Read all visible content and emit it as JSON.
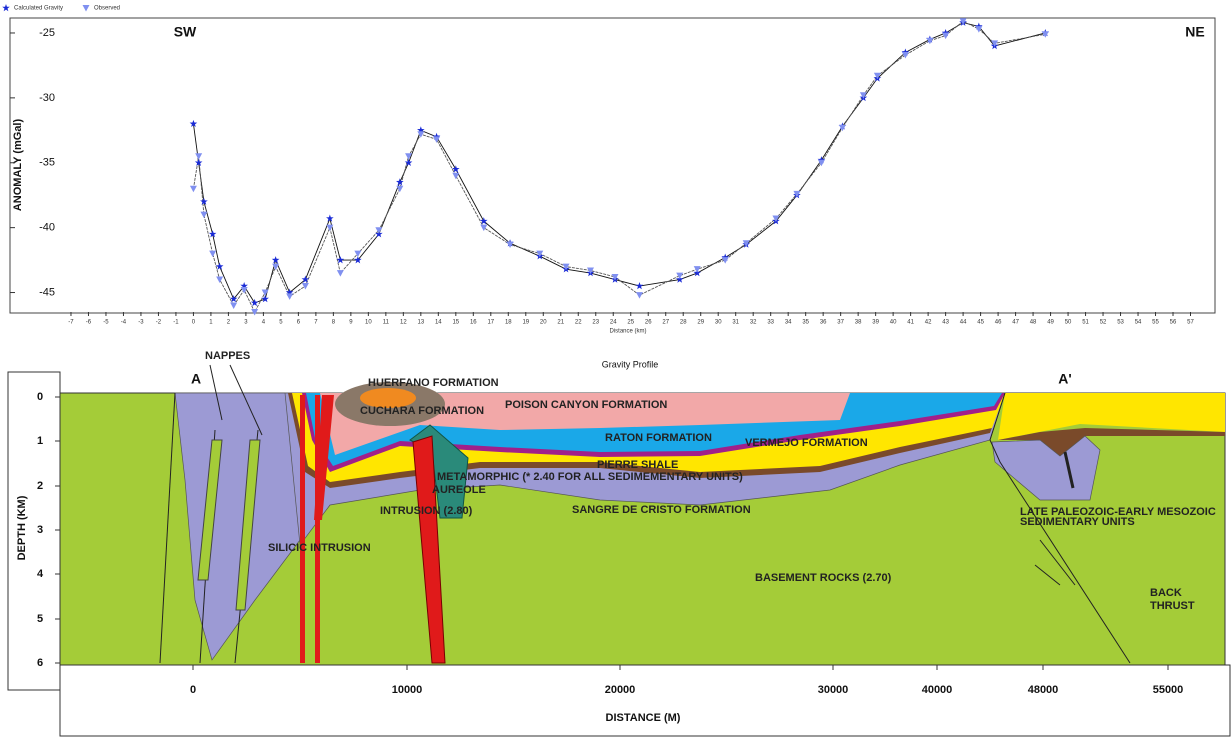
{
  "chart_data": {
    "type": "line",
    "title": "Gravity Profile",
    "x_label": "Distance (km)",
    "y_label": "ANOMALY (mGal)",
    "annotations": [
      "SW",
      "NE"
    ],
    "x": [
      0,
      0.3,
      0.6,
      1.1,
      1.5,
      2.3,
      2.9,
      3.5,
      4.1,
      4.7,
      5.5,
      6.4,
      7.8,
      8.4,
      9.4,
      10.6,
      11.8,
      12.3,
      13,
      13.9,
      15,
      16.6,
      18.1,
      19.8,
      21.3,
      22.7,
      24.1,
      25.5,
      27.8,
      28.8,
      30.4,
      31.6,
      33.3,
      34.5,
      35.9,
      37.1,
      38.3,
      39.1,
      40.7,
      42.1,
      43,
      44,
      44.9,
      45.8,
      48.7
    ],
    "series": [
      {
        "name": "Calculated Gravity",
        "color": "#1a2bd6",
        "marker": "star",
        "values": [
          -32,
          -35,
          -38,
          -40.5,
          -43,
          -45.5,
          -44.5,
          -45.8,
          -45.5,
          -42.5,
          -45,
          -44,
          -39.3,
          -42.5,
          -42.5,
          -40.5,
          -36.5,
          -35,
          -32.5,
          -33,
          -35.5,
          -39.5,
          -41.2,
          -42.2,
          -43.2,
          -43.5,
          -44,
          -44.5,
          -44,
          -43.5,
          -42.3,
          -41.3,
          -39.5,
          -37.5,
          -34.8,
          -32.2,
          -30,
          -28.5,
          -26.5,
          -25.5,
          -25,
          -24.2,
          -24.5,
          -26,
          -25
        ]
      },
      {
        "name": "Observed",
        "color": "#8090f0",
        "marker": "triangle",
        "values": [
          -37,
          -34.5,
          -39,
          -42,
          -44,
          -46,
          -44.8,
          -46.5,
          -45,
          -43,
          -45.3,
          -44.5,
          -40,
          -43.5,
          -42,
          -40.2,
          -37,
          -34.5,
          -32.8,
          -33.2,
          -36,
          -40,
          -41.3,
          -42,
          -43,
          -43.3,
          -43.8,
          -45.2,
          -43.7,
          -43.2,
          -42.5,
          -41.2,
          -39.3,
          -37.4,
          -35,
          -32.3,
          -29.8,
          -28.3,
          -26.7,
          -25.6,
          -25.2,
          -24.1,
          -24.7,
          -25.8,
          -25.1
        ]
      }
    ],
    "xlim": [
      -10.2,
      58.4
    ],
    "ylim": [
      -46.5,
      -24
    ],
    "xticks": [
      -7,
      -6,
      -5,
      -4,
      -3,
      -2,
      -1,
      0,
      1,
      2,
      3,
      4,
      5,
      6,
      7,
      8,
      9,
      10,
      11,
      12,
      13,
      14,
      15,
      16,
      17,
      18,
      19,
      20,
      21,
      22,
      23,
      24,
      25,
      26,
      27,
      28,
      29,
      30,
      31,
      32,
      33,
      34,
      35,
      36,
      37,
      38,
      39,
      40,
      41,
      42,
      43,
      44,
      45,
      46,
      47,
      48,
      49,
      50,
      51,
      52,
      53,
      54,
      55,
      56,
      57
    ],
    "yticks": [
      -25,
      -30,
      -35,
      -40,
      -45
    ]
  },
  "cross_section": {
    "markers": [
      "A",
      "A'"
    ],
    "depth_axis": {
      "title": "DEPTH (KM)",
      "ticks": [
        0,
        1,
        2,
        3,
        4,
        5,
        6
      ]
    },
    "distance_axis": {
      "title": "DISTANCE (M)",
      "ticks": [
        0,
        10000,
        20000,
        30000,
        40000,
        48000,
        55000
      ]
    },
    "labels": [
      "NAPPES",
      "HUERFANO FORMATION",
      "CUCHARA FORMATION",
      "POISON CANYON FORMATION",
      "RATON FORMATION",
      "VERMEJO FORMATION",
      "PIERRE SHALE",
      "METAMORPHIC (* 2.40 FOR ALL SEDIMEMENTARY UNITS)",
      "AUREOLE",
      "INTRUSION (2.80)",
      "SANGRE DE CRISTO FORMATION",
      "SILICIC INTRUSION",
      "BASEMENT ROCKS (2.70)",
      "LATE PALEOZOIC-EARLY MESOZOIC",
      "SEDIMENTARY UNITS",
      "BACK",
      "THRUST"
    ]
  }
}
